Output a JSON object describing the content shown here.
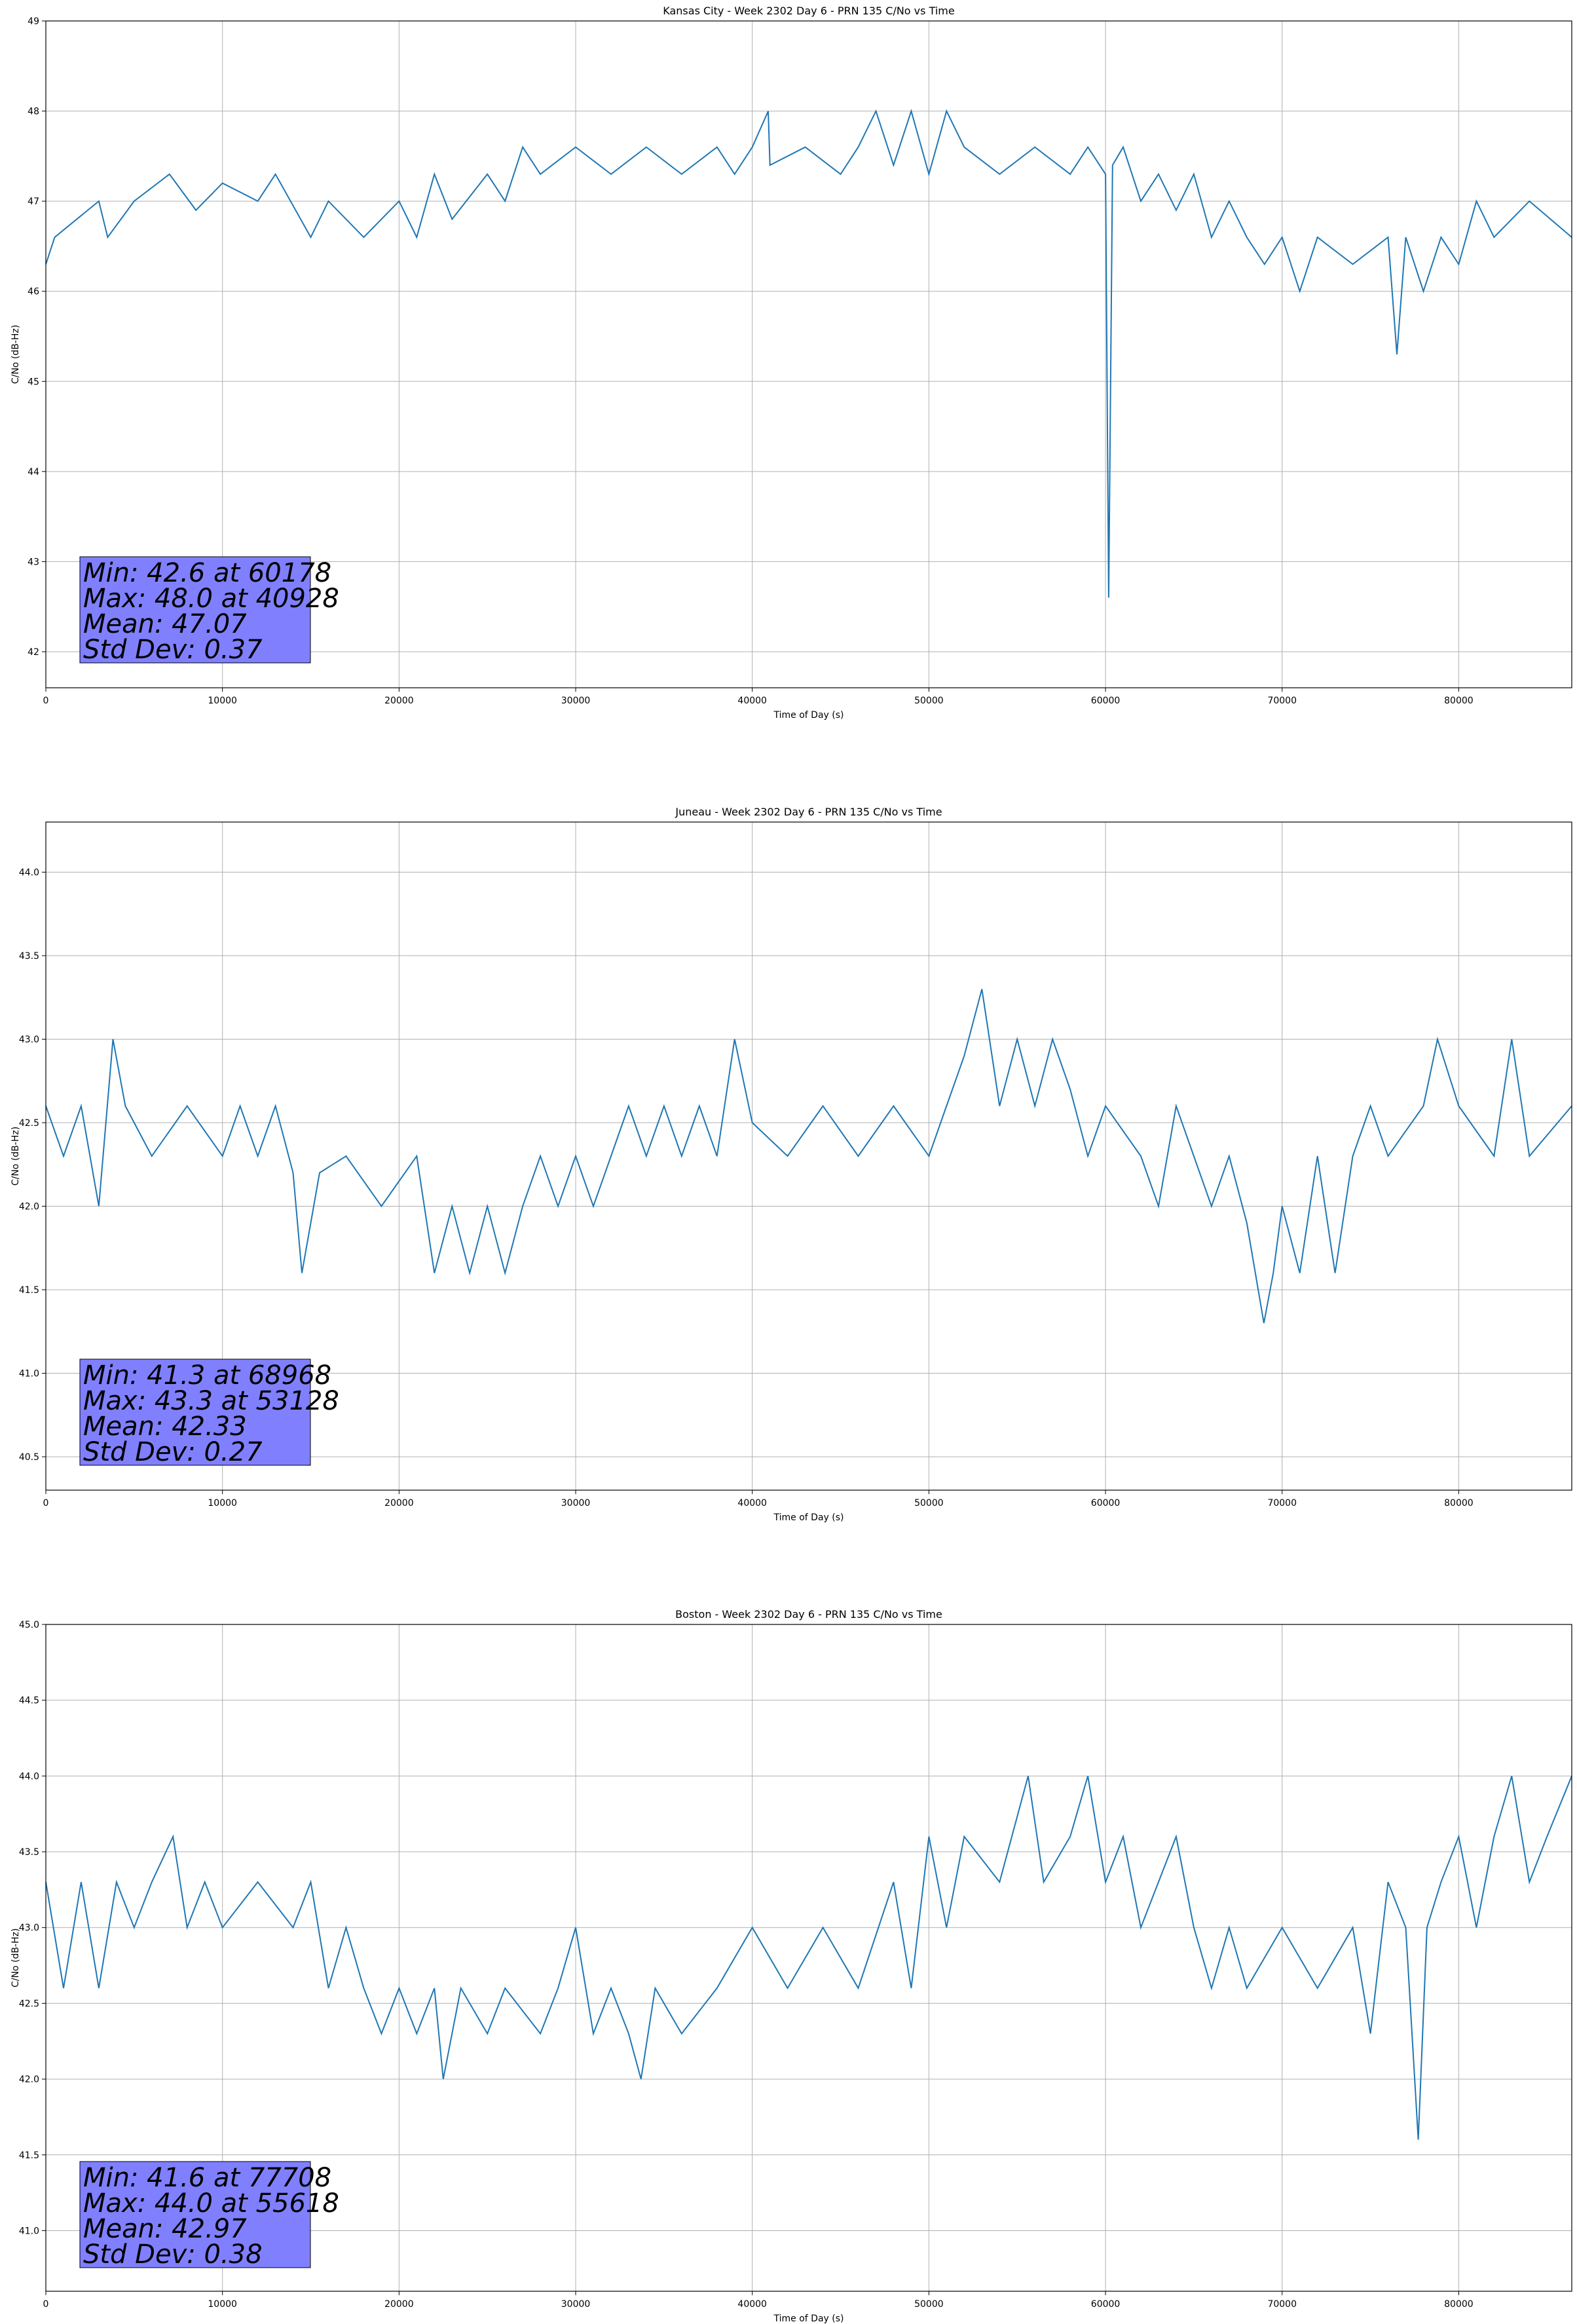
{
  "chart_data": [
    {
      "type": "line",
      "title": "Kansas City - Week 2302 Day 6 - PRN 135 C/No vs Time",
      "xlabel": "Time of Day (s)",
      "ylabel": "C/No (dB-Hz)",
      "xlim": [
        0,
        86400
      ],
      "ylim": [
        41.6,
        49.0
      ],
      "xticks": [
        0,
        10000,
        20000,
        30000,
        40000,
        50000,
        60000,
        70000,
        80000
      ],
      "yticks": [
        42,
        43,
        44,
        45,
        46,
        47,
        48,
        49
      ],
      "ytick_decimals": 0,
      "grid": true,
      "line_color": "#1f77b4",
      "series": [
        {
          "x": [
            0,
            500,
            3000,
            3500,
            5000,
            7000,
            8500,
            10000,
            12000,
            13000,
            15000,
            16000,
            18000,
            20000,
            21000,
            22000,
            23000,
            25000,
            26000,
            27000,
            28000,
            30000,
            32000,
            34000,
            36000,
            38000,
            39000,
            40000,
            40900,
            41000,
            43000,
            45000,
            46000,
            47000,
            48000,
            49000,
            50000,
            51000,
            52000,
            54000,
            56000,
            58000,
            59000,
            60000,
            60178,
            60400,
            61000,
            62000,
            63000,
            64000,
            65000,
            66000,
            67000,
            68000,
            69000,
            70000,
            71000,
            72000,
            74000,
            76000,
            76500,
            77000,
            78000,
            79000,
            80000,
            81000,
            82000,
            84000,
            86400
          ],
          "y": [
            46.3,
            46.6,
            47.0,
            46.6,
            47.0,
            47.3,
            46.9,
            47.2,
            47.0,
            47.3,
            46.6,
            47.0,
            46.6,
            47.0,
            46.6,
            47.3,
            46.8,
            47.3,
            47.0,
            47.6,
            47.3,
            47.6,
            47.3,
            47.6,
            47.3,
            47.6,
            47.3,
            47.6,
            48.0,
            47.4,
            47.6,
            47.3,
            47.6,
            48.0,
            47.4,
            48.0,
            47.3,
            48.0,
            47.6,
            47.3,
            47.6,
            47.3,
            47.6,
            47.3,
            42.6,
            47.4,
            47.6,
            47.0,
            47.3,
            46.9,
            47.3,
            46.6,
            47.0,
            46.6,
            46.3,
            46.6,
            46.0,
            46.6,
            46.3,
            46.6,
            45.3,
            46.6,
            46.0,
            46.6,
            46.3,
            47.0,
            46.6,
            47.0,
            46.6
          ]
        }
      ],
      "stats": [
        "Min: 42.6 at 60178",
        "Max: 48.0 at 40928",
        "Mean: 47.07",
        "Std Dev: 0.37"
      ],
      "stats_box_color": "#8080ff"
    },
    {
      "type": "line",
      "title": "Juneau - Week 2302 Day 6 - PRN 135 C/No vs Time",
      "xlabel": "Time of Day (s)",
      "ylabel": "C/No (dB-Hz)",
      "xlim": [
        0,
        86400
      ],
      "ylim": [
        40.3,
        44.3
      ],
      "xticks": [
        0,
        10000,
        20000,
        30000,
        40000,
        50000,
        60000,
        70000,
        80000
      ],
      "yticks": [
        40.5,
        41.0,
        41.5,
        42.0,
        42.5,
        43.0,
        43.5,
        44.0
      ],
      "ytick_decimals": 1,
      "grid": true,
      "line_color": "#1f77b4",
      "series": [
        {
          "x": [
            0,
            1000,
            2000,
            3000,
            3800,
            4500,
            6000,
            8000,
            10000,
            11000,
            12000,
            13000,
            14000,
            14500,
            15500,
            17000,
            19000,
            21000,
            22000,
            23000,
            24000,
            25000,
            26000,
            27000,
            28000,
            29000,
            30000,
            31000,
            32000,
            33000,
            34000,
            35000,
            36000,
            37000,
            38000,
            39000,
            40000,
            42000,
            44000,
            46000,
            48000,
            50000,
            51000,
            52000,
            53000,
            54000,
            55000,
            56000,
            57000,
            58000,
            59000,
            60000,
            62000,
            63000,
            64000,
            65000,
            66000,
            67000,
            68000,
            68968,
            69500,
            70000,
            71000,
            72000,
            73000,
            74000,
            75000,
            76000,
            78000,
            78800,
            80000,
            82000,
            83000,
            84000,
            86400
          ],
          "y": [
            42.6,
            42.3,
            42.6,
            42.0,
            43.0,
            42.6,
            42.3,
            42.6,
            42.3,
            42.6,
            42.3,
            42.6,
            42.2,
            41.6,
            42.2,
            42.3,
            42.0,
            42.3,
            41.6,
            42.0,
            41.6,
            42.0,
            41.6,
            42.0,
            42.3,
            42.0,
            42.3,
            42.0,
            42.3,
            42.6,
            42.3,
            42.6,
            42.3,
            42.6,
            42.3,
            43.0,
            42.5,
            42.3,
            42.6,
            42.3,
            42.6,
            42.3,
            42.6,
            42.9,
            43.3,
            42.6,
            43.0,
            42.6,
            43.0,
            42.7,
            42.3,
            42.6,
            42.3,
            42.0,
            42.6,
            42.3,
            42.0,
            42.3,
            41.9,
            41.3,
            41.6,
            42.0,
            41.6,
            42.3,
            41.6,
            42.3,
            42.6,
            42.3,
            42.6,
            43.0,
            42.6,
            42.3,
            43.0,
            42.3,
            42.6
          ]
        }
      ],
      "stats": [
        "Min: 41.3 at 68968",
        "Max: 43.3 at 53128",
        "Mean: 42.33",
        "Std Dev: 0.27"
      ],
      "stats_box_color": "#8080ff"
    },
    {
      "type": "line",
      "title": "Boston - Week 2302 Day 6 - PRN 135 C/No vs Time",
      "xlabel": "Time of Day (s)",
      "ylabel": "C/No (dB-Hz)",
      "xlim": [
        0,
        86400
      ],
      "ylim": [
        40.6,
        45.0
      ],
      "xticks": [
        0,
        10000,
        20000,
        30000,
        40000,
        50000,
        60000,
        70000,
        80000
      ],
      "yticks": [
        41.0,
        41.5,
        42.0,
        42.5,
        43.0,
        43.5,
        44.0,
        44.5,
        45.0
      ],
      "ytick_decimals": 1,
      "grid": true,
      "line_color": "#1f77b4",
      "series": [
        {
          "x": [
            0,
            1000,
            2000,
            3000,
            4000,
            5000,
            6000,
            7200,
            8000,
            9000,
            10000,
            12000,
            14000,
            15000,
            16000,
            17000,
            18000,
            19000,
            20000,
            21000,
            22000,
            22500,
            23500,
            25000,
            26000,
            28000,
            29000,
            30000,
            31000,
            32000,
            33000,
            33700,
            34500,
            36000,
            38000,
            40000,
            42000,
            44000,
            46000,
            48000,
            49000,
            50000,
            51000,
            52000,
            54000,
            55618,
            56500,
            58000,
            59000,
            60000,
            61000,
            62000,
            64000,
            65000,
            66000,
            67000,
            68000,
            70000,
            72000,
            74000,
            75000,
            76000,
            77000,
            77708,
            78200,
            79000,
            80000,
            81000,
            82000,
            83000,
            84000,
            85000,
            86400
          ],
          "y": [
            43.3,
            42.6,
            43.3,
            42.6,
            43.3,
            43.0,
            43.3,
            43.6,
            43.0,
            43.3,
            43.0,
            43.3,
            43.0,
            43.3,
            42.6,
            43.0,
            42.6,
            42.3,
            42.6,
            42.3,
            42.6,
            42.0,
            42.6,
            42.3,
            42.6,
            42.3,
            42.6,
            43.0,
            42.3,
            42.6,
            42.3,
            42.0,
            42.6,
            42.3,
            42.6,
            43.0,
            42.6,
            43.0,
            42.6,
            43.3,
            42.6,
            43.6,
            43.0,
            43.6,
            43.3,
            44.0,
            43.3,
            43.6,
            44.0,
            43.3,
            43.6,
            43.0,
            43.6,
            43.0,
            42.6,
            43.0,
            42.6,
            43.0,
            42.6,
            43.0,
            42.3,
            43.3,
            43.0,
            41.6,
            43.0,
            43.3,
            43.6,
            43.0,
            43.6,
            44.0,
            43.3,
            43.6,
            44.0
          ]
        }
      ],
      "stats": [
        "Min: 41.6 at 77708",
        "Max: 44.0 at 55618",
        "Mean: 42.97",
        "Std Dev: 0.38"
      ],
      "stats_box_color": "#8080ff"
    }
  ]
}
